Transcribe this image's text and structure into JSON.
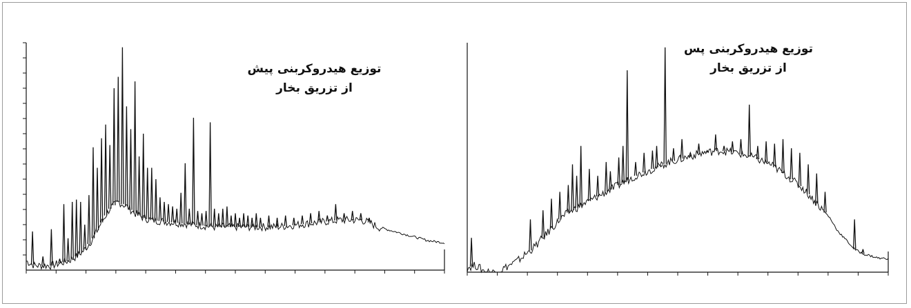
{
  "colors": {
    "ink": "#111111",
    "background": "#ffffff",
    "frame": "#9a9a9a"
  },
  "chart_data": [
    {
      "type": "line",
      "title_lines": [
        "توزیع هیدروکربنی پیش",
        "از تزریق بخار"
      ],
      "xlabel": "",
      "ylabel": "",
      "x_ticks": 14,
      "y_ticks": 15,
      "grid": false,
      "baseline": [
        [
          0,
          0.04
        ],
        [
          2,
          0.02
        ],
        [
          4,
          0.02
        ],
        [
          6,
          0.02
        ],
        [
          8,
          0.03
        ],
        [
          10,
          0.04
        ],
        [
          12,
          0.06
        ],
        [
          14,
          0.09
        ],
        [
          16,
          0.14
        ],
        [
          18,
          0.21
        ],
        [
          20,
          0.27
        ],
        [
          22,
          0.3
        ],
        [
          24,
          0.28
        ],
        [
          26,
          0.25
        ],
        [
          28,
          0.23
        ],
        [
          30,
          0.22
        ],
        [
          35,
          0.21
        ],
        [
          40,
          0.2
        ],
        [
          45,
          0.19
        ],
        [
          50,
          0.19
        ],
        [
          55,
          0.19
        ],
        [
          60,
          0.19
        ],
        [
          65,
          0.2
        ],
        [
          70,
          0.21
        ],
        [
          75,
          0.22
        ],
        [
          78,
          0.22
        ],
        [
          80,
          0.22
        ],
        [
          82,
          0.21
        ],
        [
          84,
          0.19
        ],
        [
          86,
          0.18
        ],
        [
          88,
          0.17
        ],
        [
          90,
          0.16
        ],
        [
          92,
          0.15
        ],
        [
          94,
          0.14
        ],
        [
          96,
          0.13
        ],
        [
          98,
          0.125
        ],
        [
          100,
          0.12
        ]
      ],
      "peaks": [
        [
          1.5,
          0.17
        ],
        [
          4,
          0.06
        ],
        [
          6,
          0.18
        ],
        [
          8,
          0.05
        ],
        [
          9,
          0.29
        ],
        [
          10,
          0.14
        ],
        [
          11,
          0.3
        ],
        [
          12,
          0.31
        ],
        [
          13,
          0.3
        ],
        [
          14,
          0.2
        ],
        [
          15,
          0.33
        ],
        [
          16,
          0.54
        ],
        [
          17,
          0.45
        ],
        [
          18,
          0.58
        ],
        [
          19,
          0.64
        ],
        [
          20,
          0.55
        ],
        [
          21,
          0.8
        ],
        [
          22,
          0.85
        ],
        [
          23,
          0.98
        ],
        [
          24,
          0.72
        ],
        [
          25,
          0.62
        ],
        [
          26,
          0.83
        ],
        [
          27,
          0.5
        ],
        [
          28,
          0.6
        ],
        [
          29,
          0.45
        ],
        [
          30,
          0.45
        ],
        [
          31,
          0.4
        ],
        [
          32,
          0.32
        ],
        [
          33,
          0.3
        ],
        [
          34,
          0.29
        ],
        [
          35,
          0.28
        ],
        [
          36,
          0.27
        ],
        [
          37,
          0.34
        ],
        [
          38,
          0.47
        ],
        [
          39,
          0.27
        ],
        [
          40,
          0.67
        ],
        [
          41,
          0.26
        ],
        [
          42,
          0.25
        ],
        [
          43,
          0.26
        ],
        [
          44,
          0.65
        ],
        [
          45,
          0.27
        ],
        [
          46,
          0.25
        ],
        [
          47,
          0.27
        ],
        [
          48,
          0.28
        ],
        [
          49,
          0.24
        ],
        [
          50,
          0.25
        ],
        [
          51,
          0.23
        ],
        [
          52,
          0.25
        ],
        [
          53,
          0.24
        ],
        [
          54,
          0.23
        ],
        [
          55,
          0.25
        ],
        [
          56,
          0.23
        ],
        [
          58,
          0.24
        ],
        [
          60,
          0.23
        ],
        [
          62,
          0.24
        ],
        [
          64,
          0.23
        ],
        [
          66,
          0.24
        ],
        [
          68,
          0.25
        ],
        [
          70,
          0.26
        ],
        [
          72,
          0.24
        ],
        [
          74,
          0.29
        ],
        [
          76,
          0.25
        ],
        [
          78,
          0.26
        ],
        [
          80,
          0.25
        ],
        [
          82,
          0.23
        ]
      ]
    },
    {
      "type": "line",
      "title_lines": [
        "توزیع هیدروکربنی پس",
        "از تزریق بخار"
      ],
      "xlabel": "",
      "ylabel": "",
      "x_ticks": 14,
      "y_ticks": 0,
      "grid": false,
      "baseline": [
        [
          0,
          0.02
        ],
        [
          2,
          0.03
        ],
        [
          4,
          0.005
        ],
        [
          6,
          0.0
        ],
        [
          8,
          0.01
        ],
        [
          10,
          0.03
        ],
        [
          12,
          0.05
        ],
        [
          14,
          0.08
        ],
        [
          16,
          0.11
        ],
        [
          18,
          0.15
        ],
        [
          20,
          0.19
        ],
        [
          22,
          0.23
        ],
        [
          24,
          0.26
        ],
        [
          26,
          0.28
        ],
        [
          28,
          0.3
        ],
        [
          30,
          0.32
        ],
        [
          32,
          0.34
        ],
        [
          34,
          0.36
        ],
        [
          36,
          0.38
        ],
        [
          38,
          0.4
        ],
        [
          40,
          0.42
        ],
        [
          44,
          0.45
        ],
        [
          48,
          0.48
        ],
        [
          52,
          0.5
        ],
        [
          56,
          0.52
        ],
        [
          60,
          0.53
        ],
        [
          64,
          0.52
        ],
        [
          68,
          0.5
        ],
        [
          72,
          0.47
        ],
        [
          76,
          0.42
        ],
        [
          80,
          0.36
        ],
        [
          84,
          0.28
        ],
        [
          86,
          0.24
        ],
        [
          88,
          0.18
        ],
        [
          90,
          0.14
        ],
        [
          92,
          0.1
        ],
        [
          94,
          0.08
        ],
        [
          96,
          0.07
        ],
        [
          98,
          0.06
        ],
        [
          100,
          0.06
        ]
      ],
      "peaks": [
        [
          1,
          0.15
        ],
        [
          15,
          0.23
        ],
        [
          18,
          0.27
        ],
        [
          20,
          0.32
        ],
        [
          22,
          0.35
        ],
        [
          24,
          0.38
        ],
        [
          25,
          0.47
        ],
        [
          26,
          0.42
        ],
        [
          27,
          0.55
        ],
        [
          29,
          0.45
        ],
        [
          31,
          0.42
        ],
        [
          33,
          0.48
        ],
        [
          34,
          0.44
        ],
        [
          36,
          0.5
        ],
        [
          37,
          0.55
        ],
        [
          38,
          0.88
        ],
        [
          40,
          0.48
        ],
        [
          42,
          0.52
        ],
        [
          44,
          0.53
        ],
        [
          45,
          0.55
        ],
        [
          46,
          0.46
        ],
        [
          47,
          0.98
        ],
        [
          49,
          0.54
        ],
        [
          51,
          0.58
        ],
        [
          53,
          0.52
        ],
        [
          55,
          0.56
        ],
        [
          57,
          0.53
        ],
        [
          59,
          0.6
        ],
        [
          61,
          0.55
        ],
        [
          63,
          0.57
        ],
        [
          65,
          0.58
        ],
        [
          67,
          0.73
        ],
        [
          69,
          0.55
        ],
        [
          71,
          0.57
        ],
        [
          73,
          0.56
        ],
        [
          75,
          0.58
        ],
        [
          77,
          0.54
        ],
        [
          79,
          0.52
        ],
        [
          81,
          0.47
        ],
        [
          83,
          0.43
        ],
        [
          85,
          0.35
        ],
        [
          92,
          0.23
        ],
        [
          94,
          0.1
        ]
      ]
    }
  ]
}
